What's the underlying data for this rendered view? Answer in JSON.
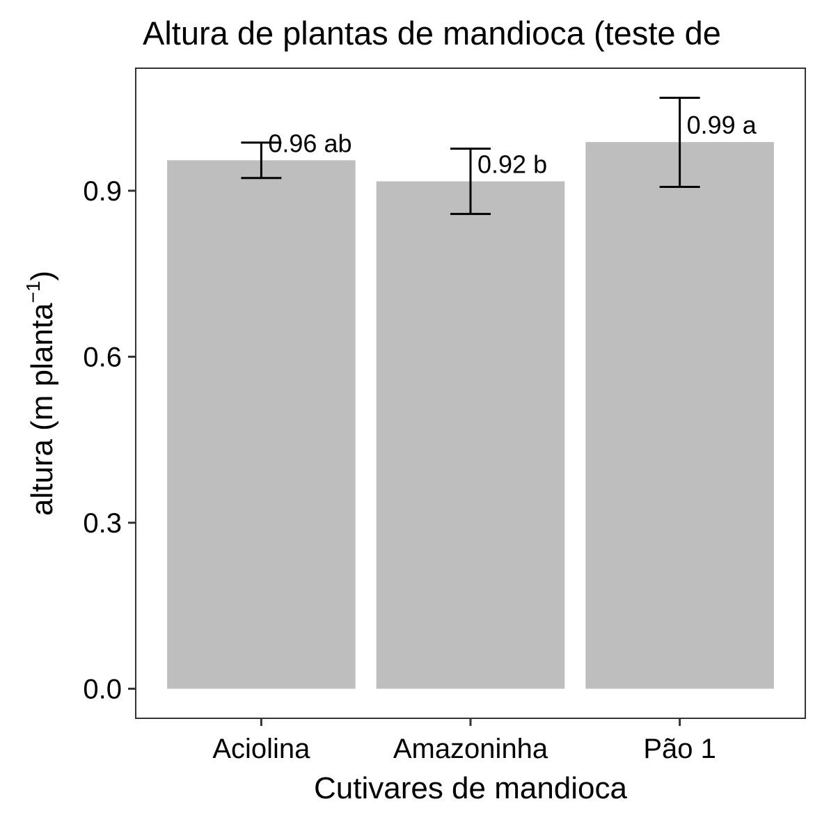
{
  "chart_data": {
    "type": "bar",
    "title": "Altura de plantas de mandioca (teste de",
    "xlabel": "Cutivares de mandioca",
    "ylabel": {
      "main": "altura  (m planta",
      "superscript": "−1",
      "close": ")"
    },
    "categories": [
      "Aciolina",
      "Amazoninha",
      "Pão 1"
    ],
    "values": [
      0.955,
      0.917,
      0.988
    ],
    "error_low": [
      0.923,
      0.858,
      0.907
    ],
    "error_high": [
      0.987,
      0.976,
      1.068
    ],
    "bar_labels": [
      "0.96 ab",
      "0.92 b",
      "0.99 a"
    ],
    "yticks": [
      0.0,
      0.3,
      0.6,
      0.9
    ],
    "ytick_labels": [
      "0.0",
      "0.3",
      "0.6",
      "0.9"
    ],
    "ylim": [
      -0.0534,
      1.1214
    ],
    "grid": false,
    "legend": "none",
    "colors": {
      "bar": "#bebebe",
      "error_bar": "#000000",
      "panel_border": "#333333",
      "background": "#ffffff"
    }
  }
}
